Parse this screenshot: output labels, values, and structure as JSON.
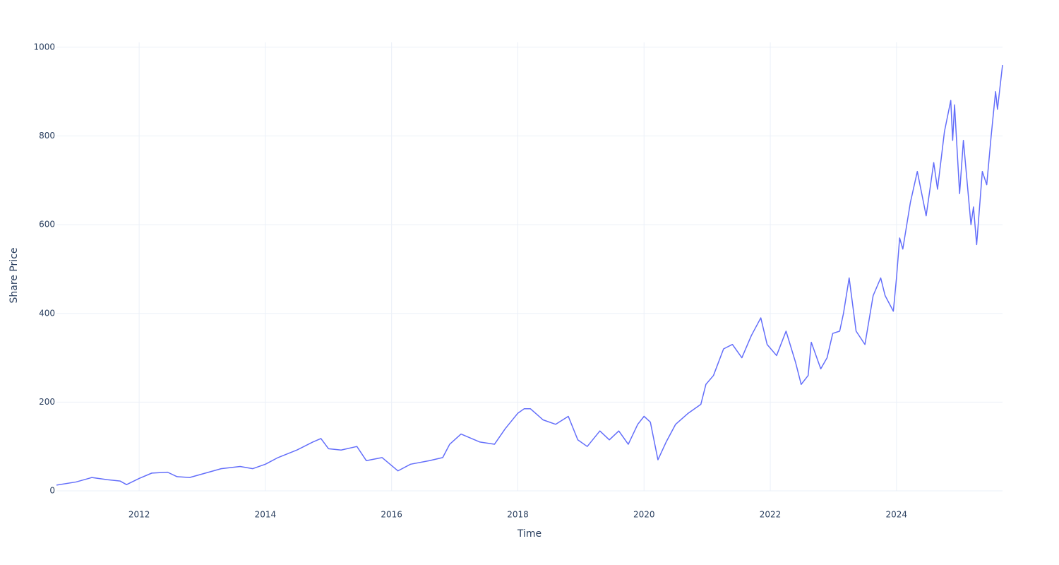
{
  "chart_data": {
    "type": "line",
    "x_label": "Time",
    "y_label": "Share Price",
    "x": [
      2010.69,
      2011.0,
      2011.25,
      2011.5,
      2011.7,
      2011.8,
      2012.0,
      2012.2,
      2012.45,
      2012.6,
      2012.8,
      2013.0,
      2013.3,
      2013.6,
      2013.8,
      2014.0,
      2014.2,
      2014.5,
      2014.75,
      2014.88,
      2015.0,
      2015.2,
      2015.45,
      2015.6,
      2015.85,
      2016.1,
      2016.3,
      2016.6,
      2016.81,
      2016.92,
      2017.1,
      2017.4,
      2017.63,
      2017.8,
      2018.0,
      2018.1,
      2018.2,
      2018.4,
      2018.6,
      2018.8,
      2018.95,
      2019.1,
      2019.3,
      2019.45,
      2019.6,
      2019.75,
      2019.9,
      2020.0,
      2020.1,
      2020.22,
      2020.35,
      2020.5,
      2020.7,
      2020.9,
      2020.98,
      2021.1,
      2021.26,
      2021.4,
      2021.55,
      2021.7,
      2021.85,
      2021.95,
      2022.1,
      2022.25,
      2022.4,
      2022.49,
      2022.6,
      2022.65,
      2022.8,
      2022.9,
      2022.99,
      2023.1,
      2023.16,
      2023.25,
      2023.36,
      2023.5,
      2023.63,
      2023.75,
      2023.82,
      2023.95,
      2024.0,
      2024.05,
      2024.1,
      2024.22,
      2024.33,
      2024.47,
      2024.59,
      2024.65,
      2024.76,
      2024.86,
      2024.89,
      2024.92,
      2025.0,
      2025.06,
      2025.18,
      2025.22,
      2025.27,
      2025.36,
      2025.43,
      2025.5,
      2025.57,
      2025.6,
      2025.68
    ],
    "series": [
      {
        "name": "Share Price",
        "color": "#636efa",
        "values": [
          13,
          20,
          30,
          25,
          22,
          14,
          28,
          40,
          42,
          32,
          30,
          38,
          50,
          55,
          50,
          60,
          75,
          92,
          110,
          118,
          95,
          92,
          100,
          68,
          75,
          45,
          60,
          68,
          75,
          105,
          128,
          110,
          105,
          140,
          175,
          185,
          185,
          160,
          150,
          168,
          115,
          100,
          135,
          115,
          135,
          105,
          150,
          168,
          155,
          70,
          110,
          150,
          175,
          195,
          240,
          260,
          320,
          330,
          300,
          350,
          390,
          330,
          305,
          360,
          290,
          240,
          260,
          335,
          275,
          300,
          355,
          360,
          400,
          480,
          360,
          330,
          440,
          480,
          440,
          405,
          480,
          570,
          545,
          650,
          720,
          620,
          740,
          680,
          810,
          880,
          790,
          870,
          670,
          790,
          600,
          640,
          555,
          720,
          690,
          800,
          900,
          860,
          960
        ]
      }
    ],
    "xlim": [
      2010.69,
      2025.68
    ],
    "xticks": [
      2012,
      2014,
      2016,
      2018,
      2020,
      2022,
      2024
    ],
    "ylim": [
      0,
      1011
    ],
    "yticks": [
      0,
      200,
      400,
      600,
      800,
      1000
    ],
    "grid": true
  }
}
